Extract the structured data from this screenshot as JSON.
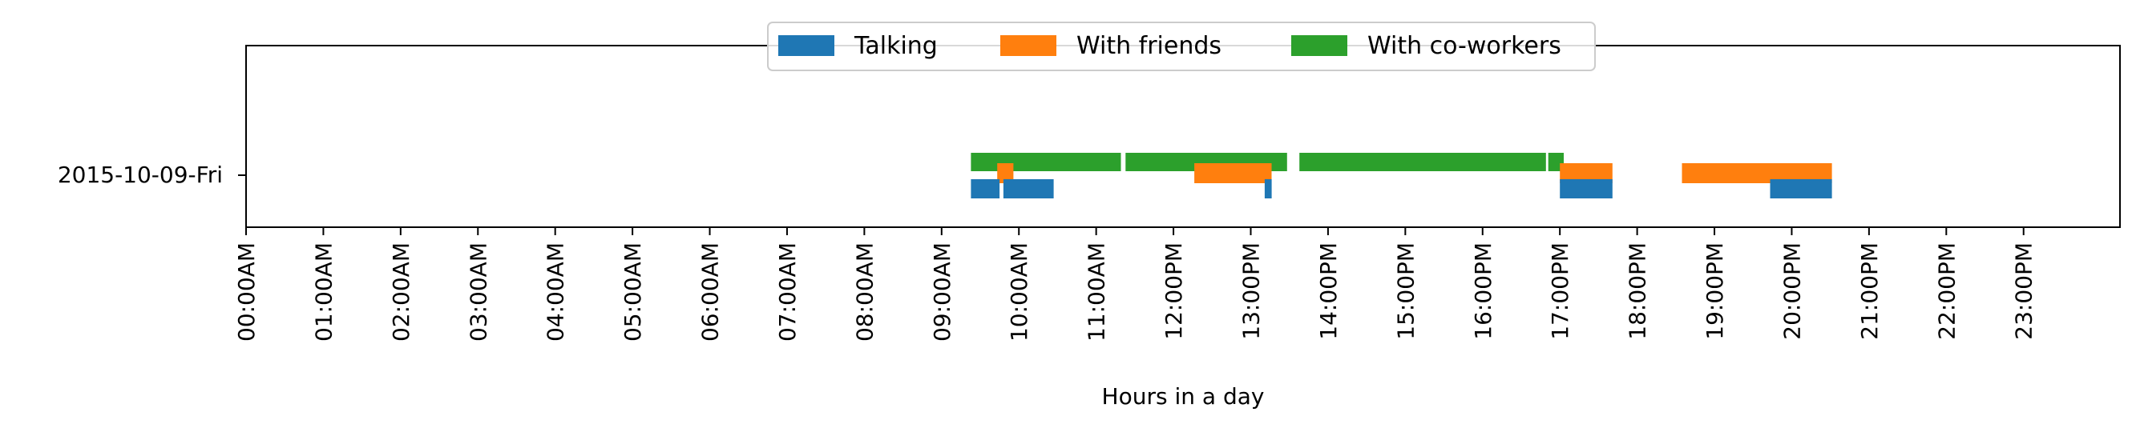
{
  "chart_data": {
    "type": "bar",
    "orientation": "horizontal-timeline",
    "title": "",
    "xlabel": "Hours in a day",
    "ylabel": "",
    "xlim": [
      0,
      24
    ],
    "x_ticks": [
      {
        "value": 0,
        "label": "00:00AM"
      },
      {
        "value": 1,
        "label": "01:00AM"
      },
      {
        "value": 2,
        "label": "02:00AM"
      },
      {
        "value": 3,
        "label": "03:00AM"
      },
      {
        "value": 4,
        "label": "04:00AM"
      },
      {
        "value": 5,
        "label": "05:00AM"
      },
      {
        "value": 6,
        "label": "06:00AM"
      },
      {
        "value": 7,
        "label": "07:00AM"
      },
      {
        "value": 8,
        "label": "08:00AM"
      },
      {
        "value": 9,
        "label": "09:00AM"
      },
      {
        "value": 10,
        "label": "10:00AM"
      },
      {
        "value": 11,
        "label": "11:00AM"
      },
      {
        "value": 12,
        "label": "12:00PM"
      },
      {
        "value": 13,
        "label": "13:00PM"
      },
      {
        "value": 14,
        "label": "14:00PM"
      },
      {
        "value": 15,
        "label": "15:00PM"
      },
      {
        "value": 16,
        "label": "16:00PM"
      },
      {
        "value": 17,
        "label": "17:00PM"
      },
      {
        "value": 18,
        "label": "18:00PM"
      },
      {
        "value": 19,
        "label": "19:00PM"
      },
      {
        "value": 20,
        "label": "20:00PM"
      },
      {
        "value": 21,
        "label": "21:00PM"
      },
      {
        "value": 22,
        "label": "22:00PM"
      },
      {
        "value": 23,
        "label": "23:00PM"
      }
    ],
    "categories": [
      "2015-10-09-Fri"
    ],
    "grid": false,
    "legend_position": "top-center",
    "series": [
      {
        "name": "Talking",
        "color": "#1f77b4",
        "intervals": [
          [
            9.38,
            9.75
          ],
          [
            9.8,
            10.45
          ],
          [
            13.18,
            13.27
          ],
          [
            17.0,
            17.68
          ],
          [
            19.72,
            20.52
          ]
        ]
      },
      {
        "name": "With friends",
        "color": "#ff7f0e",
        "intervals": [
          [
            9.72,
            9.93
          ],
          [
            12.27,
            13.27
          ],
          [
            17.0,
            17.68
          ],
          [
            18.58,
            20.52
          ]
        ]
      },
      {
        "name": "With co-workers",
        "color": "#2ca02c",
        "intervals": [
          [
            9.38,
            11.32
          ],
          [
            11.38,
            13.47
          ],
          [
            13.63,
            16.82
          ],
          [
            16.85,
            17.05
          ]
        ]
      }
    ]
  }
}
